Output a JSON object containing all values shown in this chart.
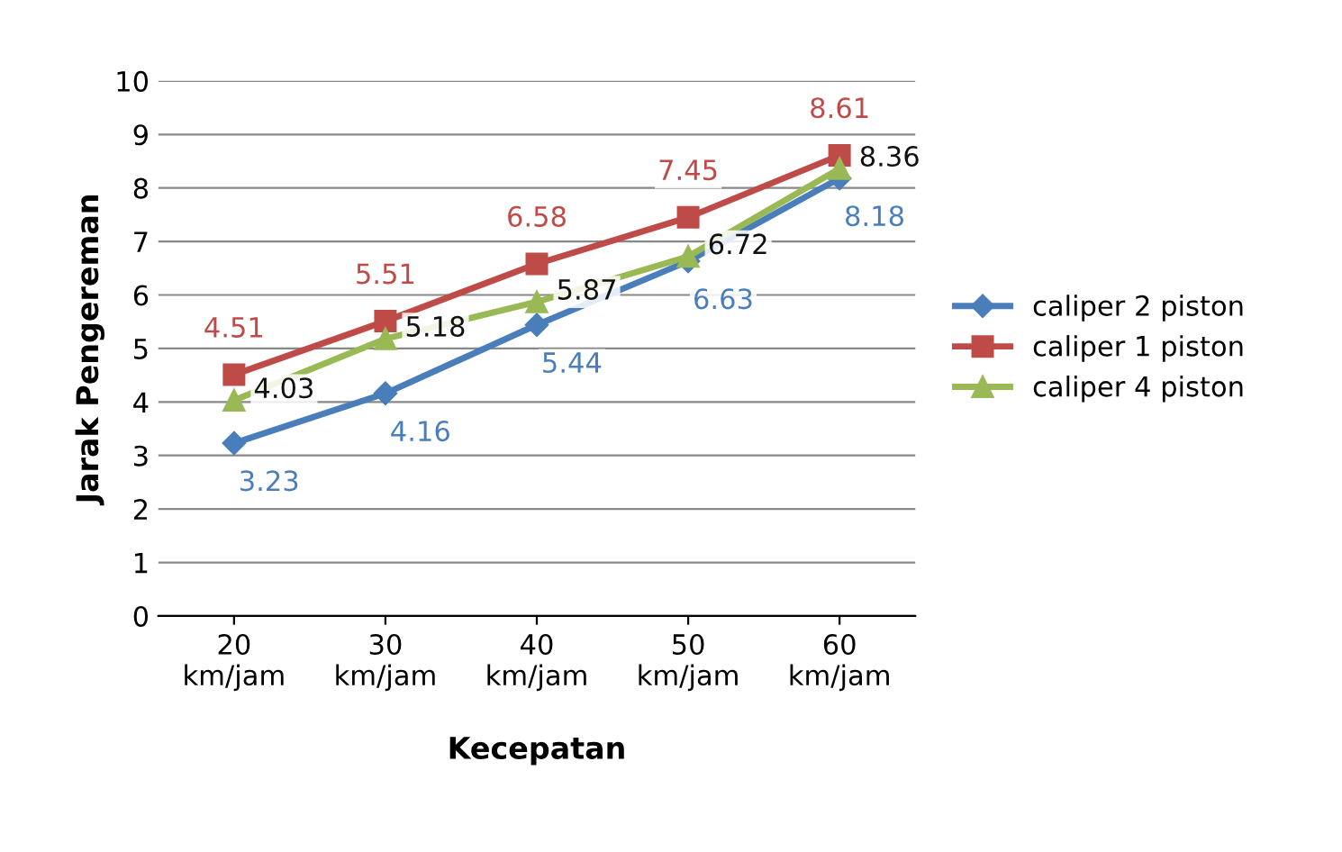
{
  "chart_data": {
    "type": "line",
    "xlabel": "Kecepatan",
    "ylabel": "Jarak Pengereman",
    "categories": [
      "20 km/jam",
      "30 km/jam",
      "40 km/jam",
      "50 km/jam",
      "60 km/jam"
    ],
    "series": [
      {
        "name": "caliper 2 piston",
        "color": "#4a7ebb",
        "marker": "diamond",
        "values": [
          3.23,
          4.16,
          5.44,
          6.63,
          8.18
        ]
      },
      {
        "name": "caliper 1 piston",
        "color": "#be4b48",
        "marker": "square",
        "values": [
          4.51,
          5.51,
          6.58,
          7.45,
          8.61
        ]
      },
      {
        "name": "caliper 4 piston",
        "color": "#98b954",
        "marker": "triangle",
        "values": [
          4.03,
          5.18,
          5.87,
          6.72,
          8.36
        ]
      }
    ],
    "ylim": [
      0,
      10
    ],
    "yticks": [
      0,
      1,
      2,
      3,
      4,
      5,
      6,
      7,
      8,
      9,
      10
    ],
    "grid": "y",
    "legend": "right",
    "data_labels": true
  }
}
